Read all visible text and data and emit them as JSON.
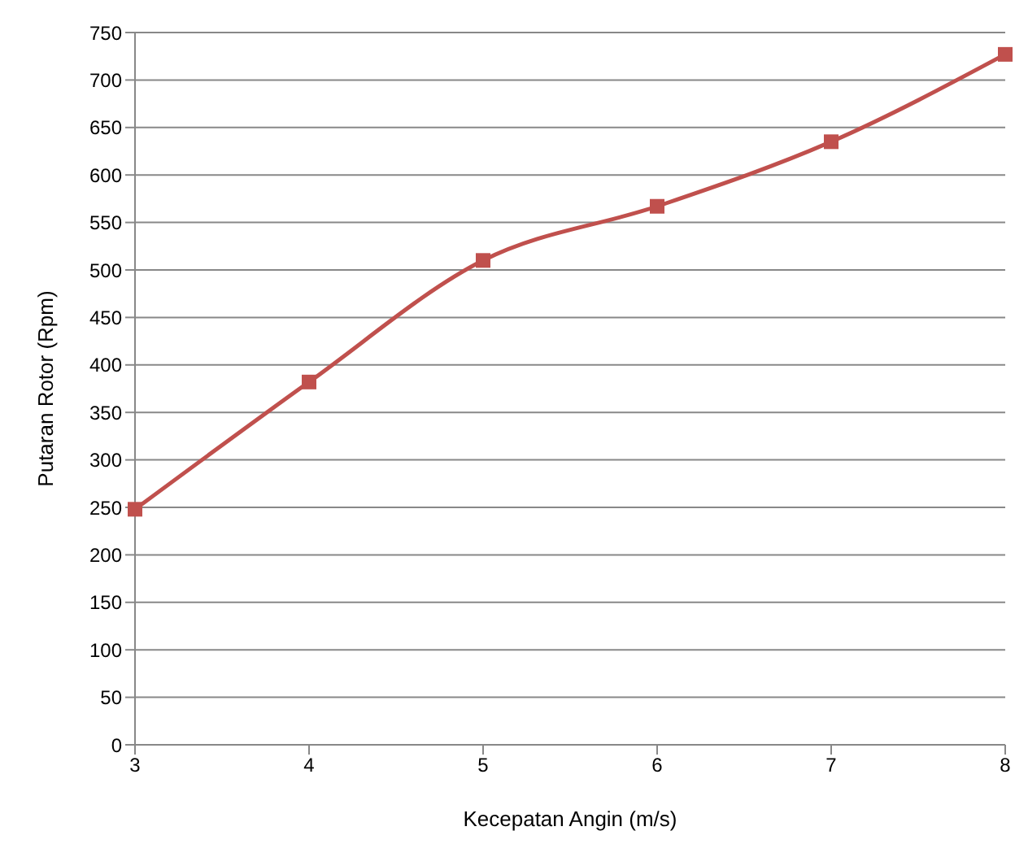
{
  "chart_data": {
    "type": "line",
    "xlabel": "Kecepatan Angin (m/s)",
    "ylabel": "Putaran Rotor (Rpm)",
    "categories": [
      "3",
      "4",
      "5",
      "6",
      "7",
      "8"
    ],
    "series": [
      {
        "color": "#c0504d",
        "values": [
          248,
          382,
          510,
          567,
          635,
          727
        ]
      }
    ],
    "ylim": [
      0,
      750
    ],
    "yticks": [
      0,
      50,
      100,
      150,
      200,
      250,
      300,
      350,
      400,
      450,
      500,
      550,
      600,
      650,
      700,
      750
    ],
    "grid": "y",
    "marker": "square",
    "line_style": "solid"
  }
}
